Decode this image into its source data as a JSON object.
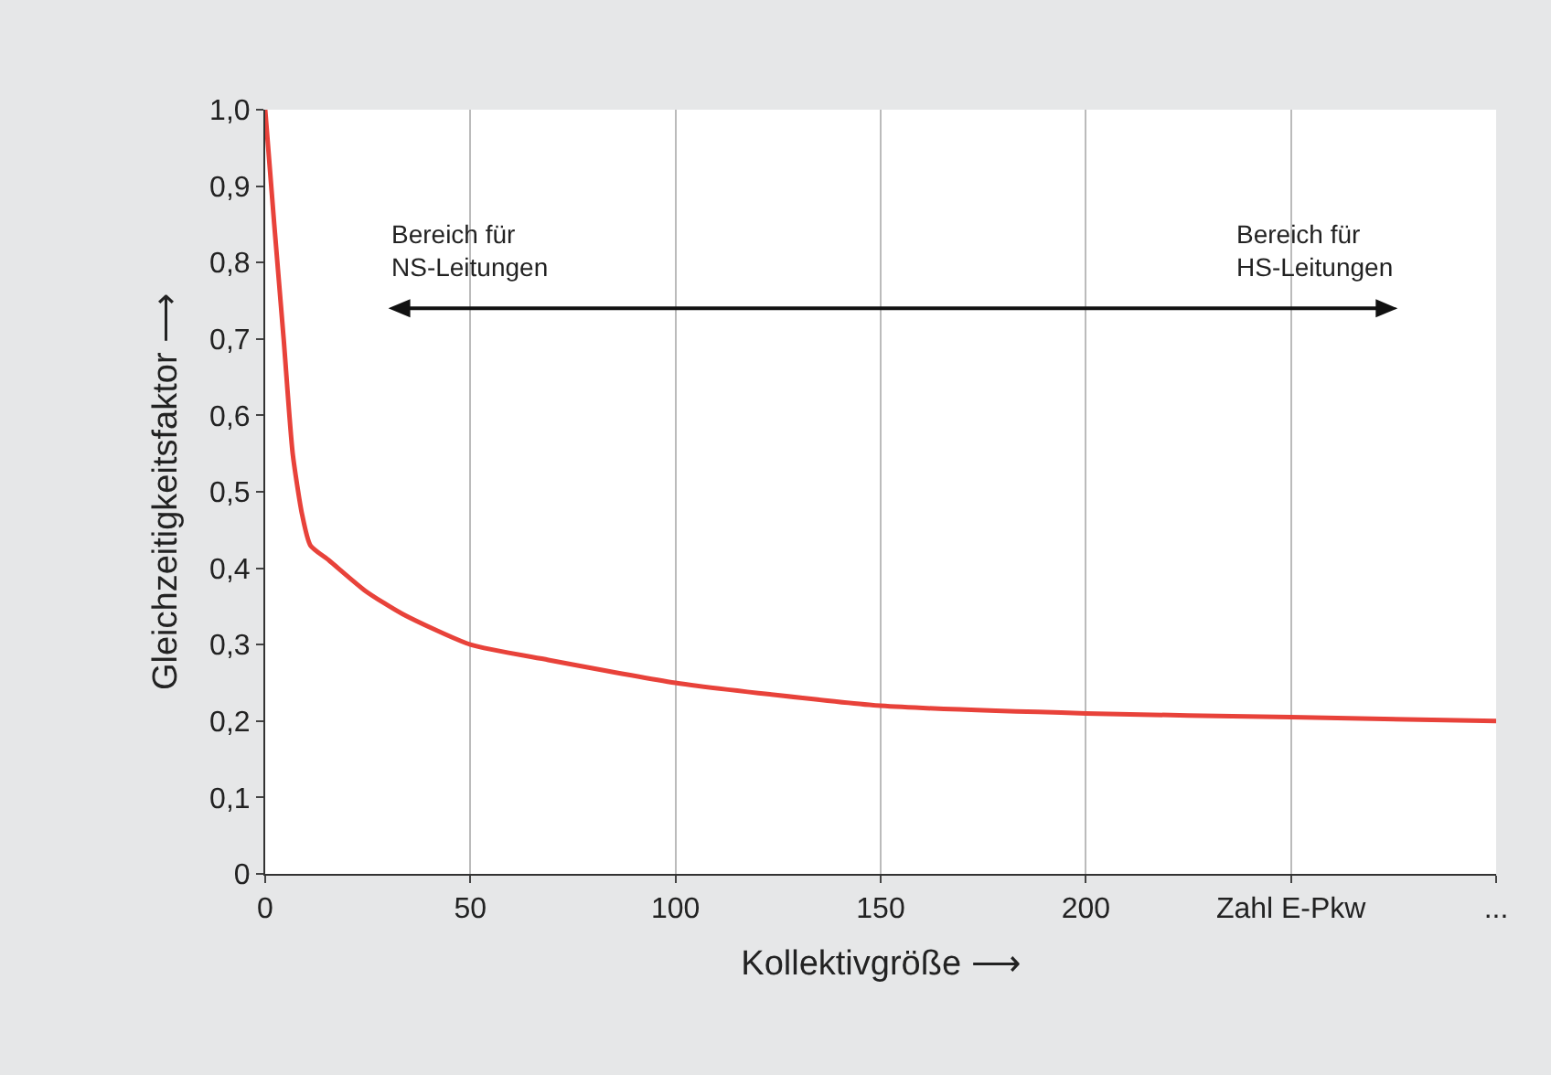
{
  "chart_data": {
    "type": "line",
    "xlabel": "Kollektivgröße ⟶",
    "ylabel": "Gleichzeitigkeitsfaktor ⟶",
    "x": [
      0,
      2.2,
      4.5,
      6.7,
      9,
      11,
      15.6,
      24.5,
      33.5,
      50,
      69,
      100,
      123,
      150,
      200,
      250,
      300
    ],
    "series": [
      {
        "color": "#e8423a",
        "values": [
          1.0,
          0.85,
          0.7,
          0.55,
          0.47,
          0.43,
          0.41,
          0.37,
          0.34,
          0.3,
          0.28,
          0.25,
          0.235,
          0.22,
          0.21,
          0.205,
          0.2
        ]
      }
    ],
    "xlim": [
      0,
      300
    ],
    "xticks": [
      0,
      50,
      100,
      150,
      200,
      {
        "value": 250,
        "label": "Zahl E-Pkw"
      },
      {
        "value": 300,
        "label": "..."
      }
    ],
    "ylim": [
      0,
      1
    ],
    "yticks": [
      {
        "value": 0,
        "label": "0"
      },
      {
        "value": 0.1,
        "label": "0,1"
      },
      {
        "value": 0.2,
        "label": "0,2"
      },
      {
        "value": 0.3,
        "label": "0,3"
      },
      {
        "value": 0.4,
        "label": "0,4"
      },
      {
        "value": 0.5,
        "label": "0,5"
      },
      {
        "value": 0.6,
        "label": "0,6"
      },
      {
        "value": 0.7,
        "label": "0,7"
      },
      {
        "value": 0.8,
        "label": "0,8"
      },
      {
        "value": 0.9,
        "label": "0,9"
      },
      {
        "value": 1,
        "label": "1,0"
      }
    ],
    "grid": "x",
    "marker": "none",
    "line_style": "solid",
    "annotations": [
      "Bereich für\nNS-Leitungen",
      "Bereich für\nHS-Leitungen"
    ]
  }
}
